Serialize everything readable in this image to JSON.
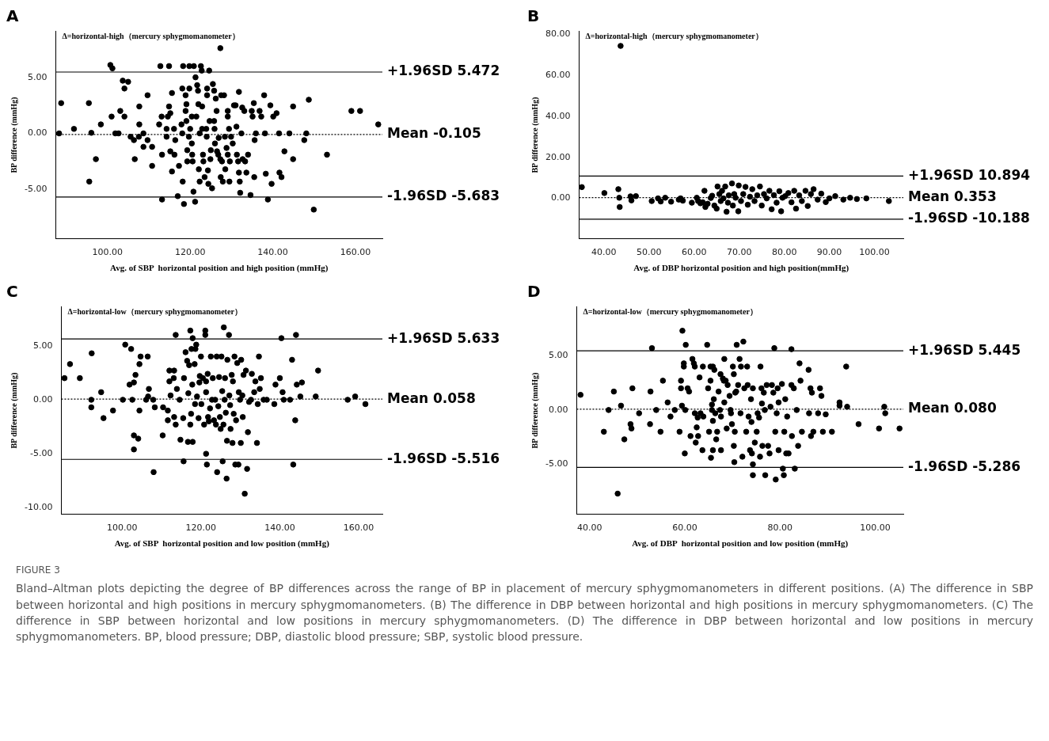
{
  "chart_data": [
    {
      "type": "scatter",
      "title": "A",
      "xlabel": "Avg. of SBP  horizontal position and high position (mmHg)",
      "ylabel": "BP difference (mmHg)",
      "annotations": [
        "Δ=horizontal-high（mercury sphygmomanometer）"
      ],
      "marker": "circle",
      "grid": false,
      "legend": false,
      "xlim": [
        87.5,
        166.5
      ],
      "ylim": [
        -9.4,
        9.1
      ],
      "xticks": [
        {
          "value": 100,
          "label": "100.00"
        },
        {
          "value": 120,
          "label": "120.00"
        },
        {
          "value": 140,
          "label": "140.00"
        },
        {
          "value": 160,
          "label": "160.00"
        }
      ],
      "yticks": [
        {
          "value": -5,
          "label": "-5.00"
        },
        {
          "value": 0,
          "label": "0.00"
        },
        {
          "value": 5,
          "label": "5.00"
        }
      ],
      "ref_lines": [
        {
          "axis": "y",
          "value": 5.472,
          "label": "+1.96SD 5.472",
          "color": "#000000",
          "line_style": "solid"
        },
        {
          "axis": "y",
          "value": -0.105,
          "label": "Mean -0.105",
          "color": "#000000",
          "line_style": "dotted"
        },
        {
          "axis": "y",
          "value": -5.683,
          "label": "-1.96SD -5.683",
          "color": "#000000",
          "line_style": "solid"
        }
      ],
      "series": [
        {
          "color": "#000000",
          "x": [
            88.3,
            88.8,
            91.9,
            95.5,
            95.6,
            96.1,
            97.2,
            98.4,
            100.7,
            101.2,
            101.0,
            101.9,
            102.7,
            103.1,
            103.7,
            104.1,
            104.1,
            105.0,
            105.6,
            106.4,
            106.6,
            107.6,
            107.7,
            107.7,
            108.7,
            108.7,
            109.7,
            109.7,
            110.8,
            110.8,
            112.5,
            112.8,
            113.1,
            113.2,
            113.2,
            114.3,
            114.3,
            114.6,
            114.9,
            114.9,
            115.2,
            115.2,
            115.6,
            115.6,
            116.1,
            116.2,
            116.4,
            117.0,
            117.3,
            117.9,
            118.1,
            118.1,
            118.2,
            118.3,
            118.5,
            118.9,
            118.9,
            119.1,
            119.1,
            119.3,
            119.3,
            119.7,
            119.8,
            119.8,
            120.0,
            120.4,
            120.4,
            120.5,
            120.6,
            120.8,
            120.9,
            121.2,
            121.3,
            121.5,
            121.7,
            121.9,
            122.0,
            122.1,
            122.3,
            122.3,
            122.6,
            122.8,
            122.9,
            122.9,
            123.1,
            123.2,
            123.5,
            123.9,
            124.0,
            124.1,
            124.1,
            124.3,
            124.4,
            124.6,
            124.7,
            124.9,
            125.0,
            125.3,
            125.5,
            125.8,
            125.8,
            125.9,
            126.0,
            126.2,
            126.4,
            126.5,
            126.8,
            126.9,
            127.3,
            127.3,
            127.5,
            127.4,
            127.7,
            127.9,
            128.2,
            128.4,
            128.5,
            128.8,
            129.1,
            129.1,
            129.1,
            129.4,
            129.5,
            129.6,
            129.9,
            130.3,
            130.6,
            131.0,
            131.2,
            131.3,
            131.6,
            131.8,
            131.8,
            132.0,
            132.1,
            132.4,
            132.6,
            132.7,
            133.1,
            133.3,
            133.6,
            134.0,
            134.6,
            134.9,
            135.1,
            135.4,
            135.5,
            135.6,
            135.9,
            136.8,
            137.2,
            137.9,
            138.1,
            138.3,
            138.8,
            139.4,
            139.7,
            140.1,
            140.9,
            141.5,
            141.6,
            142.1,
            142.8,
            144.0,
            144.9,
            144.9,
            147.6,
            148.1,
            148.7,
            149.9,
            153.1,
            159.0,
            161.1,
            165.5
          ],
          "values": [
            0,
            2.7,
            0.4,
            2.7,
            -4.3,
            0.05,
            -2.3,
            0.8,
            6.1,
            5.8,
            1.5,
            0,
            0,
            2.0,
            4.7,
            4.0,
            1.5,
            4.6,
            -0.3,
            -0.6,
            -2.3,
            -0.3,
            2.4,
            0.8,
            0,
            -1.2,
            -0.6,
            3.4,
            -1.2,
            -2.9,
            0.8,
            6.0,
            1.5,
            -1.9,
            -5.9,
            -0.3,
            0.4,
            1.5,
            6.0,
            2.4,
            1.8,
            -1.6,
            3.6,
            -3.4,
            0.4,
            -1.9,
            -0.6,
            -5.6,
            -2.9,
            0.8,
            4.0,
            0,
            -4.3,
            6.0,
            -6.3,
            3.4,
            2.0,
            2.6,
            1.1,
            -1.5,
            -2.5,
            -0.3,
            6.0,
            4.0,
            0.4,
            1.5,
            -0.9,
            -1.9,
            -2.5,
            -5.2,
            6.0,
            -6.1,
            5.0,
            1.5,
            4.3,
            3.8,
            2.6,
            -3.2,
            0,
            -4.3,
            6.0,
            5.6,
            2.4,
            0.4,
            -1.9,
            -2.5,
            -3.9,
            0.4,
            -0.3,
            4.0,
            3.4,
            -3.3,
            -4.5,
            5.6,
            1.1,
            -2.3,
            -1.5,
            -4.9,
            4.4,
            3.8,
            1.1,
            0.4,
            -0.9,
            3.1,
            2.0,
            -1.6,
            -1.9,
            -0.4,
            7.6,
            -2.3,
            3.4,
            -3.9,
            -2.5,
            -4.3,
            3.4,
            -0.3,
            -3.2,
            -1.3,
            2.0,
            1.5,
            -1.9,
            0.4,
            -4.3,
            -2.5,
            -0.3,
            -0.9,
            2.5,
            2.5,
            0.6,
            -1.9,
            -2.5,
            3.7,
            -3.5,
            -4.3,
            -5.3,
            0,
            2.3,
            -2.3,
            2.0,
            -2.5,
            -3.5,
            -1.9,
            -5.5,
            2.0,
            1.5,
            2.7,
            -3.9,
            -0.6,
            0,
            2.0,
            1.5,
            3.4,
            0,
            -3.6,
            -5.9,
            2.5,
            -4.5,
            1.5,
            1.8,
            0,
            -3.5,
            -3.9,
            -1.6,
            0,
            2.4,
            -2.3,
            -0.6,
            0,
            3.0,
            -6.8,
            -1.9,
            2.0,
            2.0,
            0.8
          ]
        }
      ]
    },
    {
      "type": "scatter",
      "title": "B",
      "xlabel": "Avg. of DBP horizontal position and high position(mmHg)",
      "ylabel": "BP difference (mmHg)",
      "annotations": [
        "Δ=horizontal-high（mercury sphygmomanometer）"
      ],
      "marker": "circle",
      "grid": false,
      "legend": false,
      "xlim": [
        34.5,
        106.4
      ],
      "ylim": [
        -19.7,
        81.5
      ],
      "xticks": [
        {
          "value": 40,
          "label": "40.00"
        },
        {
          "value": 50,
          "label": "50.00"
        },
        {
          "value": 60,
          "label": "60.00"
        },
        {
          "value": 70,
          "label": "70.00"
        },
        {
          "value": 80,
          "label": "80.00"
        },
        {
          "value": 90,
          "label": "90.00"
        },
        {
          "value": 100,
          "label": "100.00"
        }
      ],
      "yticks": [
        {
          "value": 0,
          "label": "0.00"
        },
        {
          "value": 20,
          "label": "20.00"
        },
        {
          "value": 40,
          "label": "40.00"
        },
        {
          "value": 60,
          "label": "60.00"
        },
        {
          "value": 80,
          "label": "80.00"
        }
      ],
      "ref_lines": [
        {
          "axis": "y",
          "value": 10.894,
          "label": "+1.96SD 10.894",
          "color": "#000000",
          "line_style": "solid"
        },
        {
          "axis": "y",
          "value": 0.353,
          "label": "Mean 0.353",
          "color": "#000000",
          "line_style": "dotted"
        },
        {
          "axis": "y",
          "value": -10.188,
          "label": "-1.96SD -10.188",
          "color": "#000000",
          "line_style": "solid"
        }
      ],
      "series": [
        {
          "color": "#000000",
          "x": [
            35.1,
            40.1,
            43.2,
            43.4,
            43.5,
            43.7,
            45.9,
            46.1,
            47.1,
            50.6,
            52.0,
            52.6,
            53.6,
            54.9,
            56.6,
            57.0,
            57.5,
            59.5,
            60.6,
            60.9,
            61.4,
            61.9,
            62.3,
            62.5,
            63.0,
            63.7,
            64.0,
            64.5,
            65.0,
            65.2,
            65.6,
            65.9,
            66.2,
            66.5,
            66.9,
            67.2,
            67.5,
            67.7,
            68.4,
            68.6,
            68.9,
            69.2,
            69.8,
            69.9,
            70.4,
            70.9,
            71.4,
            71.9,
            72.4,
            72.9,
            73.4,
            74.0,
            74.6,
            75.0,
            75.5,
            76.1,
            76.7,
            77.2,
            77.7,
            78.3,
            78.9,
            79.3,
            79.6,
            80.2,
            80.9,
            81.6,
            82.2,
            82.6,
            83.3,
            83.9,
            84.7,
            85.2,
            85.9,
            86.5,
            87.4,
            88.2,
            89.2,
            90.0,
            91.3,
            93.1,
            94.6,
            96.1,
            98.2,
            103.2
          ],
          "values": [
            5.5,
            2.6,
            4.5,
            0.3,
            -4.2,
            74.4,
            1.0,
            -1.0,
            1.1,
            -1.3,
            0,
            -1.5,
            0.3,
            -1.6,
            -0.6,
            0,
            -1.1,
            -2.1,
            0.3,
            -1.3,
            -2.4,
            -1.9,
            3.7,
            -4.2,
            -2.6,
            0.2,
            1.3,
            -3.5,
            -5.0,
            5.8,
            2.1,
            -1.3,
            3.7,
            0,
            5.8,
            -6.5,
            -2.1,
            1.5,
            7.3,
            -3.5,
            2.1,
            0.3,
            -6.3,
            6.3,
            -1.3,
            2.1,
            5.6,
            -3.1,
            0.8,
            4.5,
            -1.3,
            1.5,
            5.8,
            -3.5,
            2.1,
            0,
            3.7,
            -5.3,
            1.6,
            -2.1,
            3.5,
            -6.3,
            0.3,
            1.1,
            2.6,
            -1.9,
            3.7,
            -5.0,
            1.5,
            -1.3,
            3.7,
            -3.7,
            2.1,
            4.5,
            -0.6,
            2.3,
            -1.8,
            0,
            1.1,
            -0.6,
            0.3,
            -0.3,
            0,
            -1.3
          ]
        }
      ]
    },
    {
      "type": "scatter",
      "title": "C",
      "xlabel": "Avg. of SBP  horizontal position and low position (mmHg)",
      "ylabel": "BP difference (mmHg)",
      "annotations": [
        "Δ=horizontal-low（mercury sphygmomanometer）"
      ],
      "marker": "circle",
      "grid": false,
      "legend": false,
      "xlim": [
        84.6,
        166.0
      ],
      "ylim": [
        -10.6,
        8.6
      ],
      "xticks": [
        {
          "value": 100,
          "label": "100.00"
        },
        {
          "value": 120,
          "label": "120.00"
        },
        {
          "value": 140,
          "label": "140.00"
        },
        {
          "value": 160,
          "label": "160.00"
        }
      ],
      "yticks": [
        {
          "value": -10,
          "label": "-10.00"
        },
        {
          "value": -5,
          "label": "-5.00"
        },
        {
          "value": 0,
          "label": "0.00"
        },
        {
          "value": 5,
          "label": "5.00"
        }
      ],
      "ref_lines": [
        {
          "axis": "y",
          "value": 5.633,
          "label": "+1.96SD 5.633",
          "color": "#000000",
          "line_style": "solid"
        },
        {
          "axis": "y",
          "value": 0.058,
          "label": "Mean 0.058",
          "color": "#000000",
          "line_style": "dotted"
        },
        {
          "axis": "y",
          "value": -5.516,
          "label": "-1.96SD -5.516",
          "color": "#000000",
          "line_style": "solid"
        }
      ],
      "series": [
        {
          "color": "#000000",
          "x": [
            85.4,
            86.8,
            89.3,
            92.2,
            92.2,
            92.3,
            94.7,
            95.3,
            97.7,
            100.2,
            100.8,
            101.9,
            102.3,
            102.6,
            103.0,
            103.0,
            103.0,
            103.4,
            104.1,
            104.4,
            104.4,
            104.7,
            106.1,
            106.5,
            106.8,
            106.6,
            107.9,
            108.0,
            108.3,
            110.4,
            110.3,
            111.6,
            111.6,
            112.0,
            112.0,
            112.3,
            113.1,
            113.2,
            113.2,
            113.6,
            113.6,
            113.9,
            114.6,
            114.8,
            115.5,
            115.6,
            115.7,
            116.1,
            116.5,
            116.7,
            116.8,
            117.0,
            117.3,
            117.3,
            117.5,
            117.6,
            117.8,
            117.9,
            117.9,
            118.4,
            118.5,
            118.6,
            118.8,
            119.0,
            119.4,
            119.6,
            119.7,
            120.0,
            120.1,
            120.5,
            120.8,
            121.1,
            121.1,
            121.3,
            121.3,
            121.3,
            121.5,
            121.7,
            121.8,
            122.0,
            122.3,
            122.5,
            122.8,
            123.0,
            123.3,
            123.6,
            123.8,
            124.0,
            124.1,
            124.4,
            124.6,
            124.8,
            125.0,
            125.2,
            125.4,
            125.5,
            125.7,
            125.8,
            126.0,
            126.1,
            126.3,
            126.5,
            126.6,
            126.7,
            127.1,
            127.2,
            127.4,
            127.5,
            127.8,
            128.0,
            128.1,
            128.3,
            128.5,
            128.7,
            128.9,
            129.2,
            129.5,
            129.6,
            129.9,
            130.1,
            130.2,
            130.5,
            130.6,
            130.8,
            131.1,
            131.4,
            131.7,
            131.9,
            132.2,
            132.7,
            132.9,
            133.5,
            133.8,
            134.2,
            134.4,
            134.7,
            134.9,
            135.2,
            135.9,
            136.7,
            138.6,
            138.9,
            140.0,
            140.4,
            140.7,
            141.0,
            142.6,
            143.1,
            143.4,
            143.9,
            144.1,
            144.3,
            145.2,
            145.6,
            149.1,
            149.7,
            157.2,
            159.1,
            161.7
          ],
          "values": [
            2.0,
            3.3,
            2.0,
            0,
            -0.7,
            4.3,
            0.7,
            -1.7,
            -1.0,
            0,
            5.1,
            1.4,
            4.7,
            0,
            -3.3,
            -4.6,
            1.6,
            2.3,
            -3.6,
            3.3,
            -1.0,
            4.0,
            0,
            4.0,
            1.0,
            0.3,
            0,
            -6.7,
            -0.7,
            -0.7,
            -3.3,
            -1.9,
            -1.0,
            2.7,
            1.7,
            0.4,
            2.0,
            2.7,
            -1.6,
            6.0,
            -2.3,
            1.0,
            0,
            -3.7,
            -1.7,
            -5.7,
            2.0,
            4.4,
            3.6,
            -3.9,
            0.6,
            3.2,
            6.4,
            -2.3,
            -1.3,
            4.7,
            1.4,
            5.7,
            -3.9,
            3.3,
            -0.4,
            4.7,
            5.1,
            0.3,
            -1.7,
            1.6,
            2.2,
            4.0,
            -0.4,
            2.0,
            -2.3,
            6.4,
            6.0,
            0.7,
            1.7,
            -5.0,
            -6.0,
            2.4,
            -1.6,
            -2.0,
            -0.8,
            4.0,
            0,
            2.0,
            -1.9,
            0,
            -2.3,
            4.0,
            -6.7,
            -0.6,
            2.1,
            -1.6,
            -2.7,
            4.0,
            0.8,
            -5.7,
            -2.3,
            6.7,
            0,
            2.0,
            -1.2,
            -7.3,
            -3.8,
            3.7,
            6.0,
            0.4,
            -0.5,
            -2.7,
            2.3,
            -4.0,
            1.7,
            -1.3,
            4.0,
            -6.0,
            -1.9,
            3.4,
            -6.0,
            0.7,
            0,
            -4.0,
            3.7,
            0.4,
            -1.6,
            2.3,
            -8.7,
            2.7,
            -6.4,
            -3.0,
            -0.2,
            0,
            2.4,
            0.7,
            1.7,
            -4.0,
            -0.4,
            4.0,
            1.0,
            2.0,
            0,
            0,
            -0.4,
            1.4,
            2.0,
            5.7,
            0.7,
            0,
            0,
            3.7,
            -6.0,
            -1.9,
            6.0,
            1.4,
            0.3,
            1.6,
            0.3,
            2.7,
            0,
            0.3,
            -0.4
          ]
        }
      ]
    },
    {
      "type": "scatter",
      "title": "D",
      "xlabel": "Avg. of DBP  horizontal position and low position (mmHg)",
      "ylabel": "BP difference (mmHg)",
      "annotations": [
        "Δ=horizontal-low（mercury sphygmomanometer）",
        "FIGURE 3",
        "Bland–Altman plots depicting the degree of BP differences across the range of BP in placement of mercury sphygmomanometers in different positions. (A) The difference in SBP between horizontal and high positions in mercury sphygmomanometers. (B) The difference in DBP between horizontal and high positions in mercury sphygmomanometers. (C) The difference in SBP between horizontal and low positions in mercury sphygmomanometers. (D) The difference in DBP between horizontal and low positions in mercury sphygmomanometers. BP, blood pressure; DBP, diastolic blood pressure; SBP, systolic blood pressure."
      ],
      "marker": "circle",
      "grid": false,
      "legend": false,
      "xlim": [
        37.3,
        105.9
      ],
      "ylim": [
        -9.6,
        9.5
      ],
      "xticks": [
        {
          "value": 40,
          "label": "40.00"
        },
        {
          "value": 60,
          "label": "60.00"
        },
        {
          "value": 80,
          "label": "80.00"
        },
        {
          "value": 100,
          "label": "100.00"
        }
      ],
      "yticks": [
        {
          "value": -5,
          "label": "-5.00"
        },
        {
          "value": 0,
          "label": "0.00"
        },
        {
          "value": 5,
          "label": "5.00"
        }
      ],
      "ref_lines": [
        {
          "axis": "y",
          "value": 5.445,
          "label": "+1.96SD 5.445",
          "color": "#000000",
          "line_style": "solid"
        },
        {
          "axis": "y",
          "value": 0.08,
          "label": "Mean 0.080",
          "color": "#000000",
          "line_style": "dotted"
        },
        {
          "axis": "y",
          "value": -5.286,
          "label": "-1.96SD -5.286",
          "color": "#000000",
          "line_style": "solid"
        }
      ],
      "series": [
        {
          "color": "#000000",
          "x": [
            38.1,
            43.0,
            44.0,
            45.1,
            45.9,
            46.6,
            47.3,
            48.6,
            48.8,
            49.0,
            50.4,
            52.7,
            52.8,
            53.1,
            54.0,
            54.9,
            55.4,
            56.4,
            57.0,
            57.9,
            58.9,
            59.2,
            59.2,
            59.4,
            59.5,
            59.8,
            59.8,
            60.0,
            60.1,
            60.2,
            60.6,
            60.9,
            61.2,
            61.6,
            61.9,
            62.1,
            62.1,
            62.3,
            62.5,
            62.7,
            62.8,
            63.1,
            63.3,
            63.7,
            63.8,
            63.9,
            64.7,
            64.9,
            65.1,
            65.4,
            65.4,
            65.5,
            65.7,
            65.7,
            65.9,
            65.9,
            65.9,
            66.1,
            66.2,
            66.4,
            66.6,
            66.8,
            67.1,
            67.4,
            67.5,
            67.6,
            67.6,
            68.0,
            68.2,
            68.3,
            68.3,
            68.6,
            68.8,
            69.0,
            69.4,
            69.6,
            69.7,
            69.9,
            70.1,
            70.3,
            70.3,
            70.4,
            70.5,
            70.6,
            70.8,
            70.9,
            71.2,
            71.5,
            71.7,
            71.8,
            72.1,
            72.3,
            72.5,
            72.9,
            73.1,
            73.2,
            73.4,
            73.7,
            73.9,
            74.0,
            74.1,
            74.3,
            74.3,
            74.3,
            74.7,
            75.1,
            75.3,
            75.6,
            75.8,
            75.9,
            76.1,
            76.2,
            76.3,
            76.6,
            76.8,
            76.9,
            77.2,
            77.5,
            77.8,
            78.0,
            78.3,
            78.6,
            78.8,
            79.0,
            79.1,
            79.3,
            79.5,
            79.7,
            79.7,
            80.4,
            80.6,
            80.8,
            80.9,
            81.1,
            81.3,
            81.5,
            81.8,
            82.4,
            82.4,
            82.5,
            82.9,
            83.1,
            83.5,
            83.8,
            84.1,
            84.3,
            84.6,
            86.0,
            86.1,
            86.4,
            86.5,
            86.7,
            87.0,
            88.0,
            88.4,
            88.7,
            89.0,
            89.6,
            90.9,
            92.5,
            92.5,
            93.9,
            94.1,
            96.5,
            100.8,
            101.9,
            102.1,
            105.1
          ],
          "values": [
            1.4,
            -2.0,
            0,
            1.7,
            -7.7,
            0.4,
            -2.7,
            -1.3,
            -1.7,
            2.0,
            -0.3,
            -1.3,
            1.7,
            5.7,
            0,
            -2.0,
            2.7,
            0.7,
            -0.6,
            0,
            -2.0,
            2.7,
            2.0,
            0.4,
            7.3,
            4.3,
            4.0,
            -4.0,
            0,
            6.0,
            2.0,
            1.7,
            -2.4,
            4.7,
            4.3,
            4.0,
            -0.3,
            -3.0,
            -1.6,
            -0.7,
            -2.4,
            3.0,
            -0.3,
            -3.7,
            4.0,
            -0.6,
            6.0,
            2.0,
            -2.0,
            4.0,
            2.7,
            -4.4,
            0.5,
            0,
            4.0,
            -3.7,
            -1.0,
            1.0,
            3.7,
            -0.3,
            -2.7,
            -2.0,
            1.7,
            0,
            3.3,
            -3.7,
            -0.6,
            2.9,
            2.7,
            4.7,
            0.7,
            2.7,
            -1.7,
            2.3,
            1.3,
            0,
            -0.3,
            -1.3,
            4.0,
            3.3,
            -3.3,
            -4.8,
            -2.0,
            1.6,
            1.7,
            6.0,
            2.3,
            4.7,
            -0.3,
            4.0,
            -4.3,
            6.3,
            2.0,
            -2.0,
            4.0,
            2.3,
            -0.6,
            -3.7,
            1.0,
            -1.1,
            -4.0,
            2.0,
            -5.0,
            -6.0,
            -3.0,
            -2.0,
            -0.3,
            -0.7,
            -4.3,
            4.0,
            2.0,
            0.6,
            -3.3,
            1.6,
            0,
            -6.0,
            2.3,
            -3.3,
            -4.0,
            0.3,
            2.3,
            1.6,
            5.7,
            -2.0,
            -6.4,
            -0.3,
            2.0,
            -3.7,
            0.7,
            2.4,
            -5.4,
            -6.0,
            -2.0,
            1.0,
            -4.0,
            -0.6,
            -4.0,
            2.3,
            5.6,
            -2.4,
            2.0,
            -5.4,
            0,
            -3.3,
            4.3,
            2.7,
            -2.0,
            3.7,
            -0.3,
            2.0,
            -2.4,
            1.6,
            -2.0,
            -0.3,
            2.0,
            1.3,
            -2.0,
            -0.4,
            -2.0,
            0.7,
            0.4,
            4.0,
            0.3,
            -1.3,
            -1.7,
            0.3,
            -0.3,
            -1.7
          ]
        }
      ]
    }
  ]
}
